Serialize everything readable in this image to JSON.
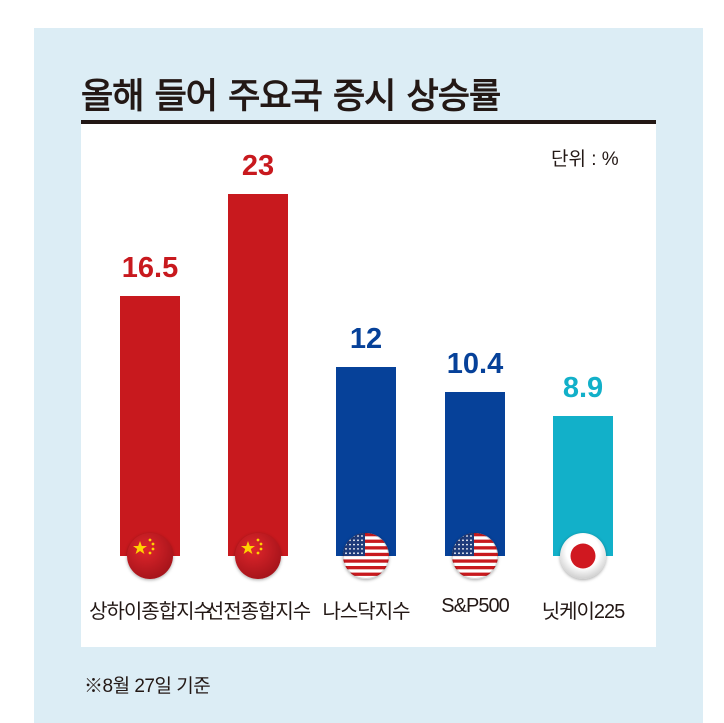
{
  "header": {
    "title": "올해 들어 주요국 증시 상승률",
    "unit": "단위 : %"
  },
  "footer": {
    "note": "※8월 27일 기준"
  },
  "colors": {
    "china": "#c8191e",
    "us": "#064199",
    "japan": "#12b0c9",
    "background": "#dcedf5",
    "text": "#231815"
  },
  "bars": [
    {
      "label": "상하이종합지수",
      "value": "16.5",
      "flag": "china-flag-icon",
      "color": "#c8191e"
    },
    {
      "label": "선전종합지수",
      "value": "23",
      "flag": "china-flag-icon",
      "color": "#c8191e"
    },
    {
      "label": "나스닥지수",
      "value": "12",
      "flag": "us-flag-icon",
      "color": "#064199"
    },
    {
      "label": "S&P500",
      "value": "10.4",
      "flag": "us-flag-icon",
      "color": "#064199"
    },
    {
      "label": "닛케이225",
      "value": "8.9",
      "flag": "japan-flag-icon",
      "color": "#12b0c9"
    }
  ],
  "chart_data": {
    "type": "bar",
    "title": "올해 들어 주요국 증시 상승률",
    "unit": "%",
    "categories": [
      "상하이종합지수",
      "선전종합지수",
      "나스닥지수",
      "S&P500",
      "닛케이225"
    ],
    "values": [
      16.5,
      23,
      12,
      10.4,
      8.9
    ],
    "countries": [
      "China",
      "China",
      "US",
      "US",
      "Japan"
    ],
    "bar_colors": [
      "#c8191e",
      "#c8191e",
      "#064199",
      "#064199",
      "#12b0c9"
    ],
    "xlabel": "",
    "ylabel": "",
    "grid": false,
    "legend": "none",
    "annotations": [
      "단위 : %",
      "※8월 27일 기준"
    ]
  }
}
